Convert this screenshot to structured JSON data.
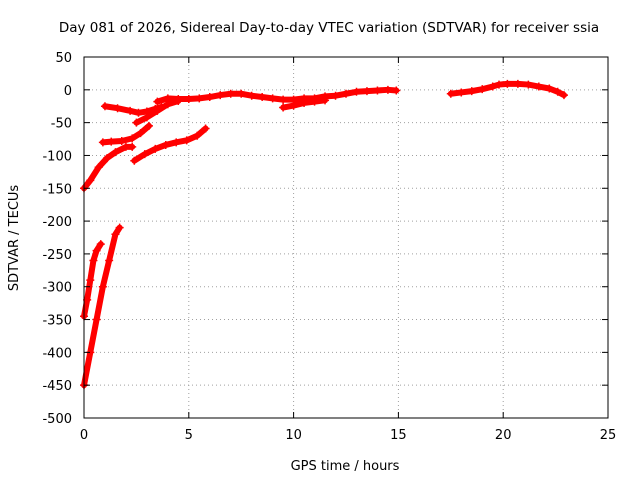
{
  "chart_data": {
    "type": "scatter",
    "title": "Day 081 of 2026, Sidereal Day-to-day VTEC variation (SDTVAR) for receiver ssia",
    "xlabel": "GPS time / hours",
    "ylabel": "SDTVAR / TECUs",
    "xlim": [
      0,
      25
    ],
    "ylim": [
      -500,
      50
    ],
    "xticks": [
      0,
      5,
      10,
      15,
      20,
      25
    ],
    "yticks": [
      50,
      0,
      -50,
      -100,
      -150,
      -200,
      -250,
      -300,
      -350,
      -400,
      -450,
      -500
    ],
    "grid": true,
    "legend": "none",
    "series_color": "#ff0000",
    "series": [
      {
        "points": [
          [
            0.0,
            -450
          ],
          [
            0.3,
            -400
          ],
          [
            0.6,
            -350
          ],
          [
            0.9,
            -300
          ],
          [
            1.2,
            -260
          ],
          [
            1.5,
            -220
          ],
          [
            1.7,
            -210
          ]
        ]
      },
      {
        "points": [
          [
            0.0,
            -345
          ],
          [
            0.15,
            -320
          ],
          [
            0.3,
            -290
          ],
          [
            0.45,
            -260
          ],
          [
            0.6,
            -245
          ],
          [
            0.8,
            -235
          ]
        ]
      },
      {
        "points": [
          [
            0.0,
            -150
          ],
          [
            0.3,
            -138
          ],
          [
            0.7,
            -118
          ],
          [
            1.1,
            -104
          ],
          [
            1.5,
            -95
          ],
          [
            2.0,
            -87
          ],
          [
            2.3,
            -87
          ]
        ]
      },
      {
        "points": [
          [
            0.9,
            -80
          ],
          [
            1.3,
            -79
          ],
          [
            1.8,
            -78
          ],
          [
            2.3,
            -74
          ],
          [
            2.7,
            -66
          ],
          [
            3.1,
            -55
          ]
        ]
      },
      {
        "points": [
          [
            1.0,
            -25
          ],
          [
            1.6,
            -28
          ],
          [
            2.2,
            -32
          ],
          [
            2.6,
            -35
          ],
          [
            3.0,
            -33
          ],
          [
            3.4,
            -29
          ],
          [
            3.7,
            -26
          ]
        ]
      },
      {
        "points": [
          [
            2.4,
            -108
          ],
          [
            2.9,
            -98
          ],
          [
            3.4,
            -90
          ],
          [
            3.9,
            -84
          ],
          [
            4.4,
            -80
          ],
          [
            4.9,
            -77
          ],
          [
            5.4,
            -70
          ],
          [
            5.8,
            -59
          ]
        ]
      },
      {
        "points": [
          [
            2.5,
            -50
          ],
          [
            3.0,
            -42
          ],
          [
            3.5,
            -32
          ],
          [
            4.0,
            -22
          ],
          [
            4.5,
            -17
          ]
        ]
      },
      {
        "points": [
          [
            3.5,
            -18
          ],
          [
            4.0,
            -13
          ],
          [
            4.5,
            -14
          ],
          [
            5.0,
            -14
          ],
          [
            5.5,
            -13
          ],
          [
            6.0,
            -11
          ],
          [
            6.5,
            -8
          ],
          [
            7.0,
            -6
          ],
          [
            7.5,
            -6
          ],
          [
            8.0,
            -9
          ],
          [
            8.5,
            -11
          ],
          [
            9.0,
            -13
          ],
          [
            9.5,
            -15
          ],
          [
            10.0,
            -15
          ],
          [
            10.5,
            -13
          ],
          [
            11.0,
            -13
          ],
          [
            11.5,
            -10
          ],
          [
            12.0,
            -9
          ],
          [
            12.5,
            -6
          ],
          [
            13.0,
            -3
          ],
          [
            13.5,
            -2
          ],
          [
            14.0,
            -1
          ],
          [
            14.5,
            0
          ],
          [
            14.9,
            -1
          ]
        ]
      },
      {
        "points": [
          [
            9.5,
            -27
          ],
          [
            10.0,
            -24
          ],
          [
            10.5,
            -20
          ],
          [
            11.0,
            -18
          ],
          [
            11.5,
            -16
          ]
        ]
      },
      {
        "points": [
          [
            17.5,
            -6
          ],
          [
            18.0,
            -4
          ],
          [
            18.5,
            -2
          ],
          [
            19.0,
            1
          ],
          [
            19.5,
            5
          ],
          [
            19.8,
            8
          ],
          [
            20.2,
            9
          ],
          [
            20.7,
            9
          ],
          [
            21.2,
            8
          ],
          [
            21.7,
            5
          ],
          [
            22.2,
            2
          ],
          [
            22.6,
            -3
          ],
          [
            22.9,
            -8
          ]
        ]
      }
    ]
  }
}
